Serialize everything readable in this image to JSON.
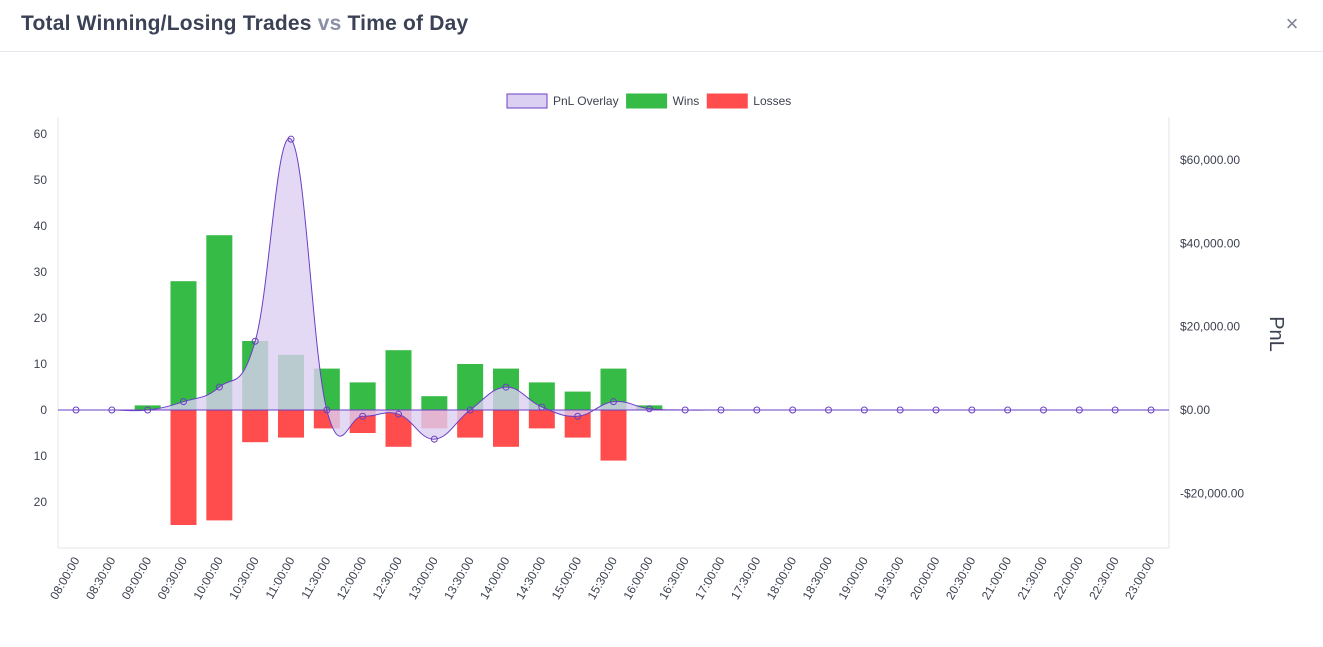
{
  "modal": {
    "title_part1": "Total Winning/Losing Trades",
    "title_vs": "vs",
    "title_part2": "Time of Day",
    "close_label": "×"
  },
  "colors": {
    "wins": "#35bb46",
    "losses": "#ff4d4d",
    "pnl_fill": "#dcd0f2",
    "pnl_line": "#6a3fc4",
    "axis_text": "#3d4250",
    "grid_line": "#e5e7ec"
  },
  "chart_data": {
    "type": "bar",
    "title": "Total Winning/Losing Trades vs Time of Day",
    "legend": {
      "position": "top-center",
      "items": [
        "PnL Overlay",
        "Wins",
        "Losses"
      ]
    },
    "categories": [
      "08:00:00",
      "08:30:00",
      "09:00:00",
      "09:30:00",
      "10:00:00",
      "10:30:00",
      "11:00:00",
      "11:30:00",
      "12:00:00",
      "12:30:00",
      "13:00:00",
      "13:30:00",
      "14:00:00",
      "14:30:00",
      "15:00:00",
      "15:30:00",
      "16:00:00",
      "16:30:00",
      "17:00:00",
      "17:30:00",
      "18:00:00",
      "18:30:00",
      "19:00:00",
      "19:30:00",
      "20:00:00",
      "20:30:00",
      "21:00:00",
      "21:30:00",
      "22:00:00",
      "22:30:00",
      "23:00:00"
    ],
    "series": [
      {
        "name": "Wins",
        "type": "bar",
        "axis": "left",
        "values": [
          0,
          0,
          1,
          28,
          38,
          15,
          12,
          9,
          6,
          13,
          3,
          10,
          9,
          6,
          4,
          9,
          1,
          0,
          0,
          0,
          0,
          0,
          0,
          0,
          0,
          0,
          0,
          0,
          0,
          0,
          0
        ]
      },
      {
        "name": "Losses",
        "type": "bar",
        "axis": "left",
        "values": [
          0,
          0,
          0,
          -25,
          -24,
          -7,
          -6,
          -4,
          -5,
          -8,
          -4,
          -6,
          -8,
          -4,
          -6,
          -11,
          0,
          0,
          0,
          0,
          0,
          0,
          0,
          0,
          0,
          0,
          0,
          0,
          0,
          0,
          0
        ]
      },
      {
        "name": "PnL Overlay",
        "type": "area",
        "axis": "right",
        "values": [
          0,
          0,
          0,
          2000,
          5500,
          16500,
          65000,
          0,
          -1500,
          -1000,
          -7000,
          0,
          5500,
          700,
          -1500,
          2000,
          300,
          0,
          0,
          0,
          0,
          0,
          0,
          0,
          0,
          0,
          0,
          0,
          0,
          0,
          0
        ]
      }
    ],
    "y_left": {
      "min": -30,
      "max": 60,
      "ticks": [
        -20,
        -10,
        0,
        10,
        20,
        30,
        40,
        50,
        60
      ],
      "tick_labels": [
        "20",
        "10",
        "0",
        "10",
        "20",
        "30",
        "40",
        "50",
        "60"
      ]
    },
    "y_right": {
      "min": -33000,
      "max": 67000,
      "ticks": [
        -20000,
        0,
        20000,
        40000,
        60000
      ],
      "tick_labels": [
        "-$20,000.00",
        "$0.00",
        "$20,000.00",
        "$40,000.00",
        "$60,000.00"
      ],
      "label": "PnL"
    },
    "grid": false
  }
}
